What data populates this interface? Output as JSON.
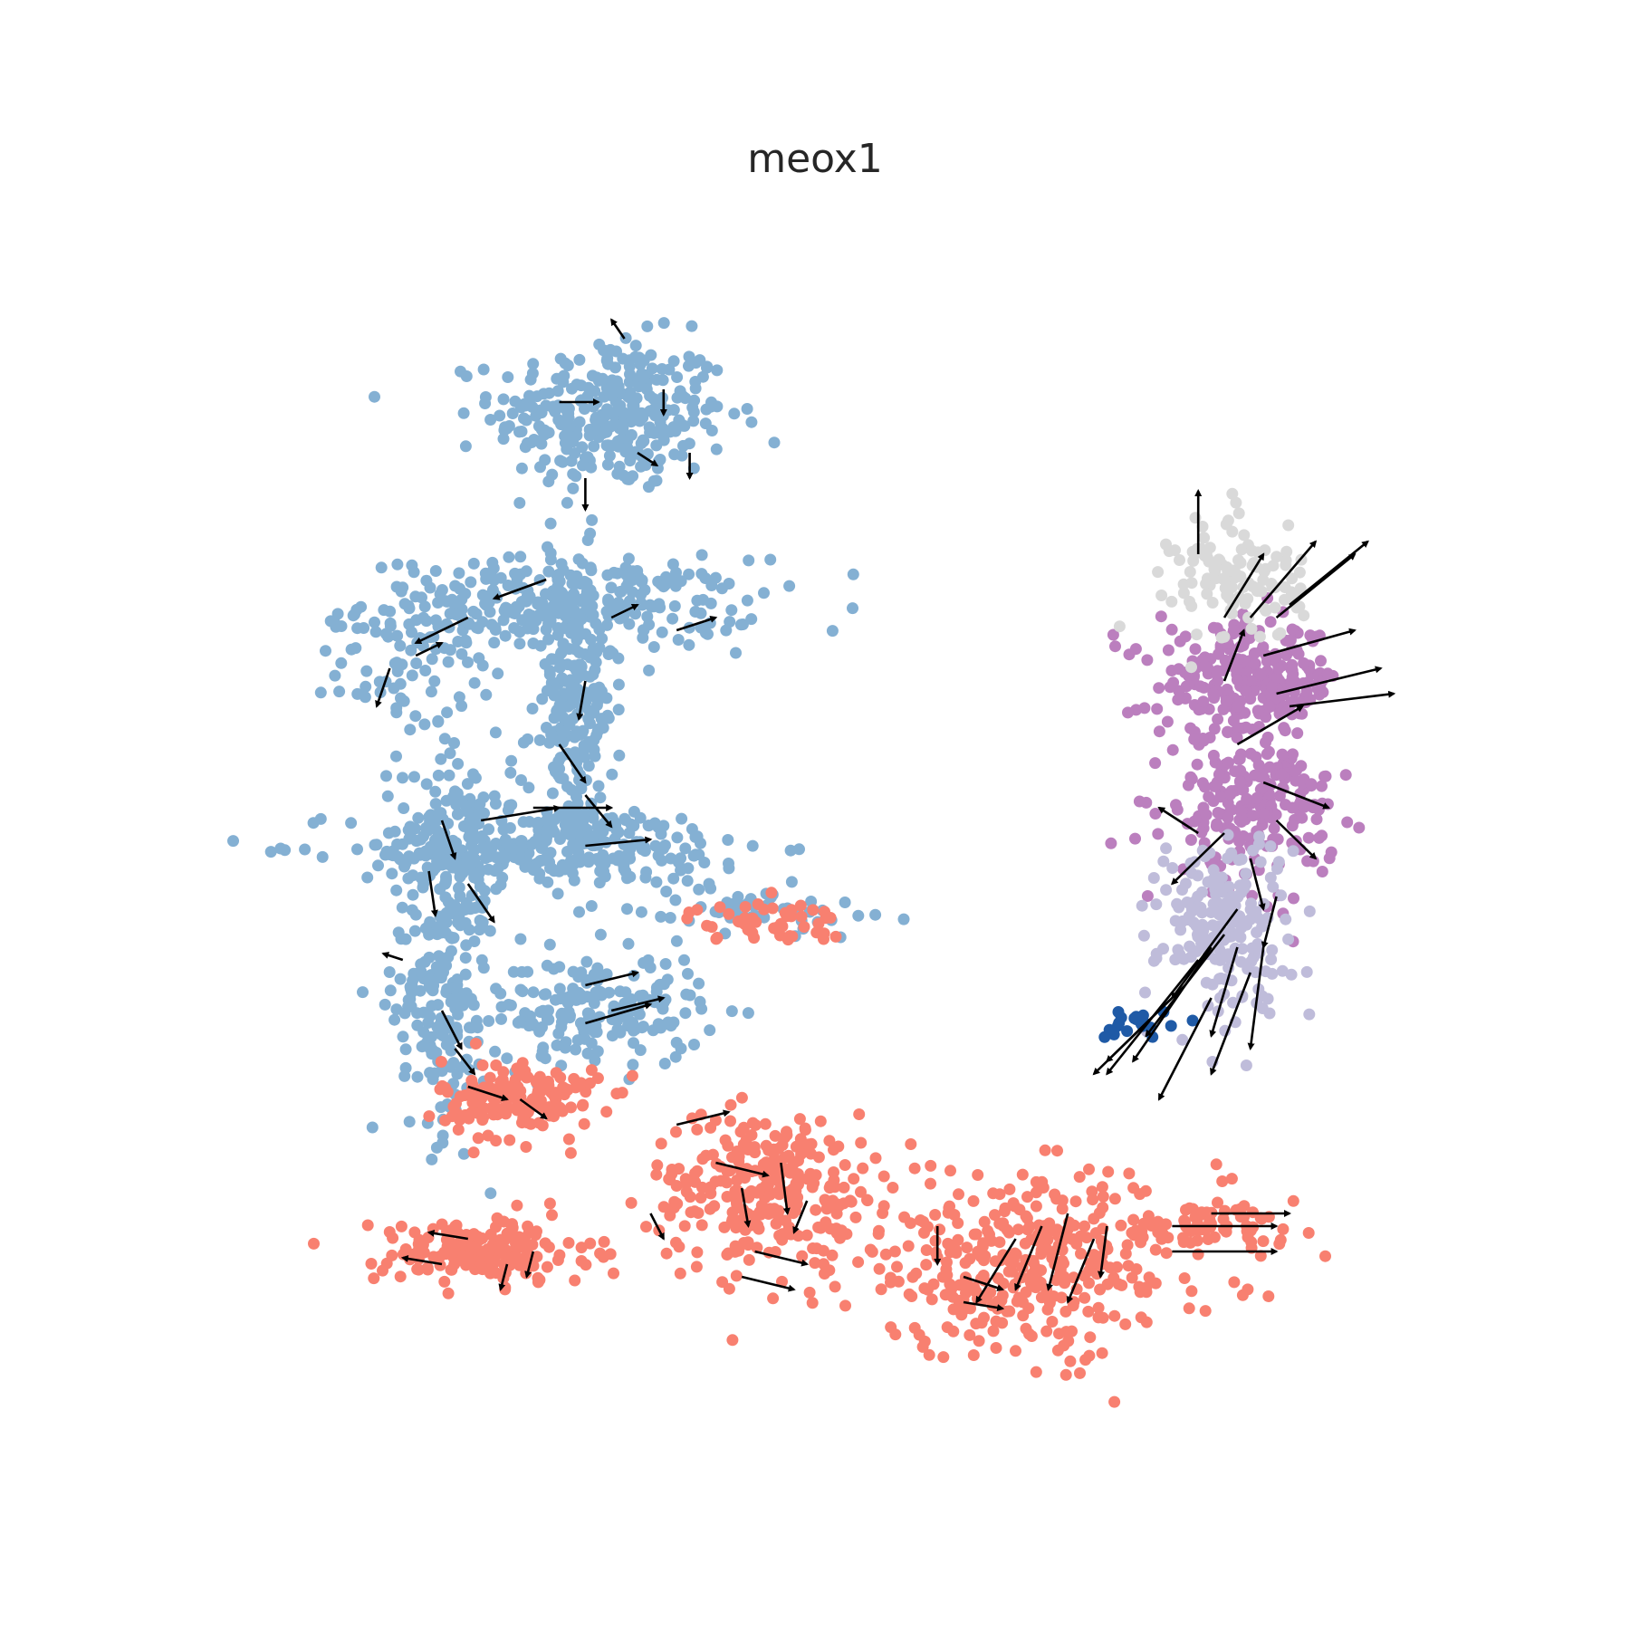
{
  "chart_data": {
    "type": "scatter",
    "title": "meox1",
    "xlabel": "",
    "ylabel": "",
    "grid": false,
    "legend": "none",
    "axes_visible": false,
    "xlim": [
      0,
      100
    ],
    "ylim": [
      0,
      100
    ],
    "colors": {
      "light_blue": "#84b0d3",
      "salmon": "#f88070",
      "purple": "#bb7fbe",
      "lavender": "#bfbcda",
      "light_gray": "#d9d9d9",
      "dark_blue": "#1f5aa6",
      "arrow": "#000000"
    },
    "clusters": [
      {
        "color": "light_blue",
        "x": 33,
        "y": 83,
        "sx": 4.5,
        "sy": 3,
        "n": 320
      },
      {
        "color": "light_blue",
        "x": 29,
        "y": 68,
        "sx": 7.5,
        "sy": 1.8,
        "n": 300
      },
      {
        "color": "light_blue",
        "x": 17,
        "y": 63,
        "sx": 2.5,
        "sy": 2.2,
        "n": 60
      },
      {
        "color": "light_blue",
        "x": 30,
        "y": 60,
        "sx": 1.6,
        "sy": 6,
        "n": 220
      },
      {
        "color": "light_blue",
        "x": 29,
        "y": 49,
        "sx": 8,
        "sy": 1.6,
        "n": 260
      },
      {
        "color": "light_blue",
        "x": 21,
        "y": 48,
        "sx": 2.2,
        "sy": 5,
        "n": 200
      },
      {
        "color": "light_blue",
        "x": 20,
        "y": 36,
        "sx": 1.8,
        "sy": 5,
        "n": 160
      },
      {
        "color": "light_blue",
        "x": 32,
        "y": 36,
        "sx": 4,
        "sy": 2.2,
        "n": 180
      },
      {
        "color": "light_blue",
        "x": 44,
        "y": 44,
        "sx": 4.5,
        "sy": 0.9,
        "n": 60
      },
      {
        "color": "salmon",
        "x": 45,
        "y": 43,
        "sx": 3,
        "sy": 0.8,
        "n": 50
      },
      {
        "color": "salmon",
        "x": 26,
        "y": 29,
        "sx": 3,
        "sy": 1.6,
        "n": 160
      },
      {
        "color": "salmon",
        "x": 45,
        "y": 22,
        "sx": 4.5,
        "sy": 3,
        "n": 280
      },
      {
        "color": "salmon",
        "x": 23,
        "y": 17,
        "sx": 4,
        "sy": 1.3,
        "n": 180
      },
      {
        "color": "salmon",
        "x": 65,
        "y": 16,
        "sx": 7.5,
        "sy": 3.5,
        "n": 380
      },
      {
        "color": "salmon",
        "x": 78,
        "y": 19,
        "sx": 4,
        "sy": 0.7,
        "n": 60
      },
      {
        "color": "purple",
        "x": 82,
        "y": 62,
        "sx": 3.5,
        "sy": 2.2,
        "n": 260
      },
      {
        "color": "purple",
        "x": 82,
        "y": 52,
        "sx": 3.2,
        "sy": 3,
        "n": 220
      },
      {
        "color": "lavender",
        "x": 80,
        "y": 43,
        "sx": 2.5,
        "sy": 3.5,
        "n": 200
      },
      {
        "color": "light_gray",
        "x": 81,
        "y": 70,
        "sx": 2.5,
        "sy": 2.5,
        "n": 120
      },
      {
        "color": "dark_blue",
        "x": 73,
        "y": 35,
        "sx": 1.5,
        "sy": 0.6,
        "n": 20
      }
    ],
    "velocity_arrows": [
      {
        "x": 37,
        "y": 85,
        "dx": 0,
        "dy": -2
      },
      {
        "x": 34,
        "y": 89,
        "dx": -1,
        "dy": 1.5
      },
      {
        "x": 29,
        "y": 84,
        "dx": 3,
        "dy": 0
      },
      {
        "x": 35,
        "y": 80,
        "dx": 1.5,
        "dy": -1
      },
      {
        "x": 39,
        "y": 80,
        "dx": 0,
        "dy": -2
      },
      {
        "x": 31,
        "y": 78,
        "dx": 0,
        "dy": -2.5
      },
      {
        "x": 28,
        "y": 70,
        "dx": -4,
        "dy": -1.5
      },
      {
        "x": 33,
        "y": 67,
        "dx": 2,
        "dy": 1
      },
      {
        "x": 38,
        "y": 66,
        "dx": 3,
        "dy": 1
      },
      {
        "x": 22,
        "y": 67,
        "dx": -4,
        "dy": -2
      },
      {
        "x": 16,
        "y": 63,
        "dx": -1,
        "dy": -3
      },
      {
        "x": 18,
        "y": 64,
        "dx": 2,
        "dy": 1
      },
      {
        "x": 31,
        "y": 62,
        "dx": -0.5,
        "dy": -3
      },
      {
        "x": 29,
        "y": 57,
        "dx": 2,
        "dy": -3
      },
      {
        "x": 31,
        "y": 53,
        "dx": 2,
        "dy": -2.5
      },
      {
        "x": 27,
        "y": 52,
        "dx": 6,
        "dy": 0
      },
      {
        "x": 31,
        "y": 49,
        "dx": 5,
        "dy": 0.5
      },
      {
        "x": 23,
        "y": 51,
        "dx": 6,
        "dy": 1
      },
      {
        "x": 20,
        "y": 51,
        "dx": 1,
        "dy": -3
      },
      {
        "x": 19,
        "y": 47,
        "dx": 0.5,
        "dy": -3.5
      },
      {
        "x": 22,
        "y": 46,
        "dx": 2,
        "dy": -3
      },
      {
        "x": 17,
        "y": 40,
        "dx": -1.5,
        "dy": 0.5
      },
      {
        "x": 20,
        "y": 36,
        "dx": 1.5,
        "dy": -3
      },
      {
        "x": 21,
        "y": 33,
        "dx": 1.5,
        "dy": -2
      },
      {
        "x": 31,
        "y": 38,
        "dx": 4,
        "dy": 1
      },
      {
        "x": 31,
        "y": 35,
        "dx": 5,
        "dy": 1.5
      },
      {
        "x": 33,
        "y": 36,
        "dx": 4,
        "dy": 1
      },
      {
        "x": 22,
        "y": 30,
        "dx": 3,
        "dy": -1
      },
      {
        "x": 26,
        "y": 29,
        "dx": 2,
        "dy": -1.5
      },
      {
        "x": 38,
        "y": 27,
        "dx": 4,
        "dy": 1
      },
      {
        "x": 41,
        "y": 24,
        "dx": 4,
        "dy": -1
      },
      {
        "x": 43,
        "y": 22,
        "dx": 0.5,
        "dy": -3
      },
      {
        "x": 46,
        "y": 24,
        "dx": 0.5,
        "dy": -4
      },
      {
        "x": 48,
        "y": 21,
        "dx": -1,
        "dy": -2.5
      },
      {
        "x": 44,
        "y": 17,
        "dx": 4,
        "dy": -1
      },
      {
        "x": 43,
        "y": 15,
        "dx": 4,
        "dy": -1
      },
      {
        "x": 36,
        "y": 20,
        "dx": 1,
        "dy": -2
      },
      {
        "x": 22,
        "y": 18,
        "dx": -3,
        "dy": 0.5
      },
      {
        "x": 20,
        "y": 16,
        "dx": -3,
        "dy": 0.5
      },
      {
        "x": 25,
        "y": 16,
        "dx": -0.5,
        "dy": -2
      },
      {
        "x": 27,
        "y": 17,
        "dx": -0.5,
        "dy": -2
      },
      {
        "x": 58,
        "y": 19,
        "dx": 0,
        "dy": -3
      },
      {
        "x": 60,
        "y": 15,
        "dx": 3,
        "dy": -1
      },
      {
        "x": 64,
        "y": 18,
        "dx": -3,
        "dy": -5
      },
      {
        "x": 66,
        "y": 19,
        "dx": -2,
        "dy": -5
      },
      {
        "x": 68,
        "y": 20,
        "dx": -1.5,
        "dy": -6
      },
      {
        "x": 70,
        "y": 18,
        "dx": -2,
        "dy": -5
      },
      {
        "x": 71,
        "y": 19,
        "dx": -0.5,
        "dy": -4
      },
      {
        "x": 60,
        "y": 13,
        "dx": 3,
        "dy": -0.5
      },
      {
        "x": 76,
        "y": 19,
        "dx": 8,
        "dy": 0
      },
      {
        "x": 76,
        "y": 17,
        "dx": 8,
        "dy": 0
      },
      {
        "x": 79,
        "y": 20,
        "dx": 6,
        "dy": 0
      },
      {
        "x": 78,
        "y": 72,
        "dx": 0,
        "dy": 5
      },
      {
        "x": 80,
        "y": 67,
        "dx": 3,
        "dy": 5
      },
      {
        "x": 82,
        "y": 67,
        "dx": 5,
        "dy": 6
      },
      {
        "x": 84,
        "y": 67,
        "dx": 6,
        "dy": 5
      },
      {
        "x": 85,
        "y": 68,
        "dx": 6,
        "dy": 5
      },
      {
        "x": 80,
        "y": 62,
        "dx": 1.5,
        "dy": 4
      },
      {
        "x": 83,
        "y": 64,
        "dx": 7,
        "dy": 2
      },
      {
        "x": 84,
        "y": 61,
        "dx": 8,
        "dy": 2
      },
      {
        "x": 85,
        "y": 60,
        "dx": 8,
        "dy": 1
      },
      {
        "x": 81,
        "y": 57,
        "dx": 5,
        "dy": 3
      },
      {
        "x": 83,
        "y": 54,
        "dx": 5,
        "dy": -2
      },
      {
        "x": 84,
        "y": 51,
        "dx": 3,
        "dy": -3
      },
      {
        "x": 80,
        "y": 50,
        "dx": -4,
        "dy": -4
      },
      {
        "x": 78,
        "y": 50,
        "dx": -3,
        "dy": 2
      },
      {
        "x": 82,
        "y": 48,
        "dx": 1,
        "dy": -4
      },
      {
        "x": 84,
        "y": 45,
        "dx": -1,
        "dy": -4
      },
      {
        "x": 81,
        "y": 44,
        "dx": -5,
        "dy": -7
      },
      {
        "x": 80,
        "y": 42,
        "dx": -6,
        "dy": -8
      },
      {
        "x": 79,
        "y": 41,
        "dx": -6,
        "dy": -9
      },
      {
        "x": 78,
        "y": 40,
        "dx": -7,
        "dy": -9
      },
      {
        "x": 81,
        "y": 41,
        "dx": -2,
        "dy": -7
      },
      {
        "x": 83,
        "y": 41,
        "dx": -1,
        "dy": -8
      },
      {
        "x": 82,
        "y": 39,
        "dx": -3,
        "dy": -8
      },
      {
        "x": 77,
        "y": 38,
        "dx": -7,
        "dy": -7
      },
      {
        "x": 76,
        "y": 37,
        "dx": -5,
        "dy": -5
      },
      {
        "x": 79,
        "y": 37,
        "dx": -4,
        "dy": -8
      }
    ]
  }
}
